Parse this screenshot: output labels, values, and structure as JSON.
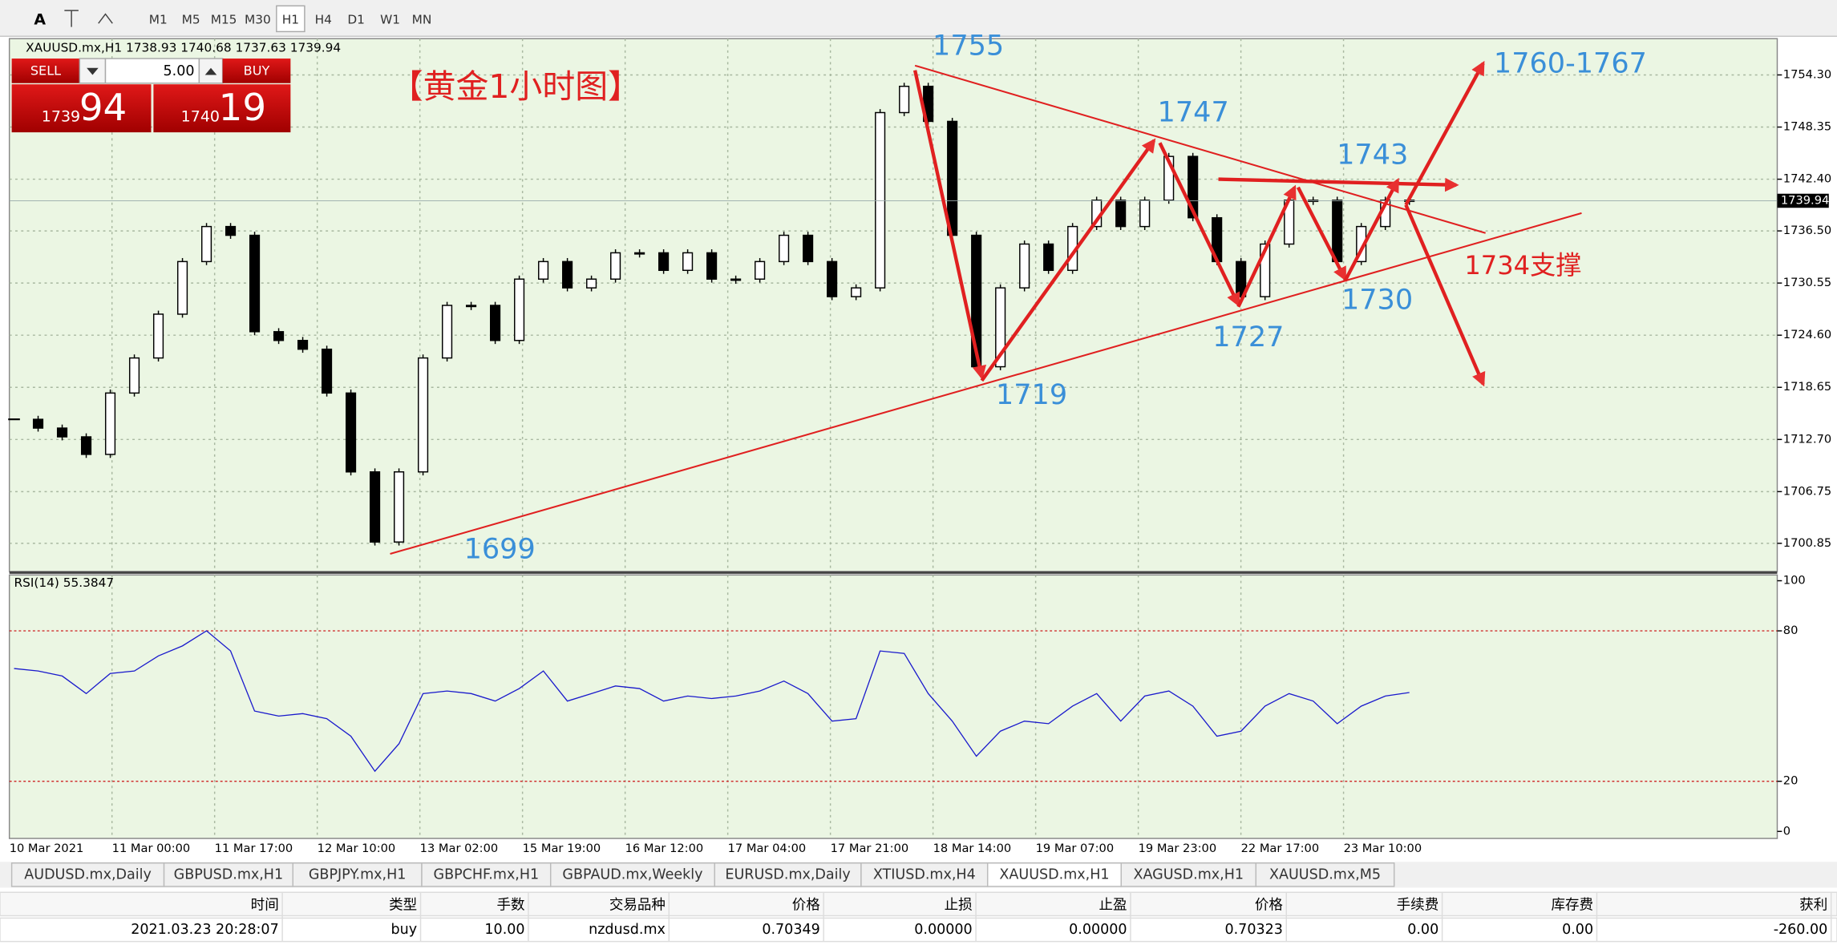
{
  "toolbar": {
    "buttons": [
      "A",
      "M1",
      "M5",
      "M15",
      "M30",
      "H1",
      "H4",
      "D1",
      "W1",
      "MN"
    ]
  },
  "trade_panel": {
    "sell": "SELL",
    "lots": "5.00",
    "buy": "BUY",
    "bid_small": "1739",
    "bid_big": "94",
    "ask_small": "1740",
    "ask_big": "19"
  },
  "chart_data": [
    {
      "type": "candlestick",
      "title": "XAUUSD.mx,H1  1738.93 1740.68 1737.63 1739.94",
      "subtitle": "【黄金1小时图】",
      "values": [
        1715,
        1714,
        1713,
        1711,
        1718,
        1722,
        1727,
        1733,
        1737,
        1736,
        1725,
        1724,
        1723,
        1718,
        1709,
        1701,
        1709,
        1722,
        1728,
        1728,
        1724,
        1731,
        1733,
        1730,
        1731,
        1734,
        1734,
        1732,
        1734,
        1731,
        1731,
        1733,
        1736,
        1733,
        1729,
        1730,
        1750,
        1753,
        1749,
        1736,
        1721,
        1730,
        1735,
        1732,
        1737,
        1740,
        1737,
        1740,
        1745,
        1738,
        1733,
        1729,
        1735,
        1740,
        1740,
        1733,
        1737,
        1740,
        1739.94
      ],
      "ylim": [
        1697.64,
        1758.44
      ],
      "yticks": [
        {
          "value": 1754.3,
          "label": "1754.30"
        },
        {
          "value": 1748.35,
          "label": "1748.35"
        },
        {
          "value": 1742.4,
          "label": "1742.40"
        },
        {
          "value": 1736.5,
          "label": "1736.50"
        },
        {
          "value": 1730.55,
          "label": "1730.55"
        },
        {
          "value": 1724.6,
          "label": "1724.60"
        },
        {
          "value": 1718.65,
          "label": "1718.65"
        },
        {
          "value": 1712.7,
          "label": "1712.70"
        },
        {
          "value": 1706.75,
          "label": "1706.75"
        },
        {
          "value": 1700.85,
          "label": "1700.85"
        }
      ],
      "current_price": {
        "value": 1739.94,
        "label": "1739.94"
      },
      "xtick_labels": [
        "10 Mar 2021",
        "11 Mar 00:00",
        "11 Mar 17:00",
        "12 Mar 10:00",
        "13 Mar 02:00",
        "15 Mar 19:00",
        "16 Mar 12:00",
        "17 Mar 04:00",
        "17 Mar 21:00",
        "18 Mar 14:00",
        "19 Mar 07:00",
        "19 Mar 23:00",
        "22 Mar 17:00",
        "23 Mar 10:00"
      ],
      "annotations": [
        "1755",
        "1747",
        "1743",
        "1760-1767",
        "1699",
        "1719",
        "1727",
        "1730",
        "1734支撑"
      ],
      "grid": true
    },
    {
      "type": "line",
      "title": "RSI(14) 55.3847",
      "color": "#1a1acc",
      "values": [
        65,
        64,
        62,
        55,
        63,
        64,
        70,
        74,
        80,
        72,
        48,
        46,
        47,
        45,
        38,
        24,
        35,
        55,
        56,
        55,
        52,
        57,
        64,
        52,
        55,
        58,
        57,
        52,
        54,
        53,
        54,
        56,
        60,
        55,
        44,
        45,
        72,
        71,
        55,
        44,
        30,
        40,
        44,
        43,
        50,
        55,
        44,
        54,
        56,
        50,
        38,
        40,
        50,
        55,
        52,
        43,
        50,
        54,
        55.3847
      ],
      "ylim": [
        -2.8,
        102.3
      ],
      "yticks": [
        100,
        80,
        20,
        0
      ],
      "levels": [
        80,
        20
      ]
    }
  ],
  "tabs": [
    "AUDUSD.mx,Daily",
    "GBPUSD.mx,H1",
    "GBPJPY.mx,H1",
    "GBPCHF.mx,H1",
    "GBPAUD.mx,Weekly",
    "EURUSD.mx,Daily",
    "XTIUSD.mx,H4",
    "XAUUSD.mx,H1",
    "XAGUSD.mx,H1",
    "XAUUSD.mx,M5"
  ],
  "trades": {
    "headers": [
      "时间",
      "类型",
      "手数",
      "交易品种",
      "价格",
      "止损",
      "止盈",
      "价格",
      "手续费",
      "库存费",
      "获利"
    ],
    "rows": [
      [
        "2021.03.23 20:28:07",
        "buy",
        "10.00",
        "nzdusd.mx",
        "0.70349",
        "0.00000",
        "0.00000",
        "0.70323",
        "0.00",
        "0.00",
        "-260.00"
      ]
    ]
  }
}
